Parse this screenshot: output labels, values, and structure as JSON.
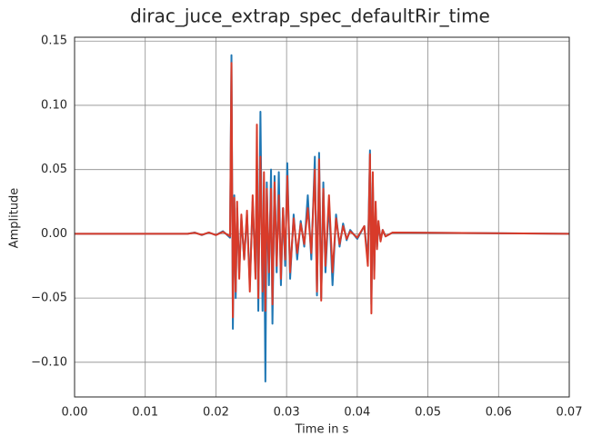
{
  "chart_data": {
    "type": "line",
    "title": "dirac_juce_extrap_spec_defaultRir_time",
    "xlabel": "Time in s",
    "ylabel": "Amplitude",
    "x": [
      0,
      0.016,
      0.017,
      0.018,
      0.019,
      0.02,
      0.021,
      0.022,
      0.0222,
      0.0224,
      0.0226,
      0.0228,
      0.023,
      0.0233,
      0.0236,
      0.024,
      0.0244,
      0.0248,
      0.0252,
      0.0256,
      0.0258,
      0.026,
      0.0263,
      0.0266,
      0.0268,
      0.027,
      0.0272,
      0.0275,
      0.0278,
      0.028,
      0.0283,
      0.0286,
      0.0289,
      0.0292,
      0.0295,
      0.0298,
      0.0301,
      0.0305,
      0.031,
      0.0315,
      0.032,
      0.0325,
      0.033,
      0.0335,
      0.034,
      0.0343,
      0.0346,
      0.0349,
      0.0352,
      0.0355,
      0.036,
      0.0365,
      0.037,
      0.0375,
      0.038,
      0.0385,
      0.039,
      0.04,
      0.041,
      0.0415,
      0.0418,
      0.042,
      0.0422,
      0.0424,
      0.0426,
      0.0428,
      0.043,
      0.0433,
      0.0436,
      0.044,
      0.045,
      0.07
    ],
    "series": [
      {
        "color": "#1f77b4",
        "values": [
          0,
          0,
          0.001,
          -0.001,
          0.001,
          -0.001,
          0.002,
          -0.003,
          0.139,
          -0.074,
          0.03,
          -0.05,
          0.02,
          -0.03,
          0.012,
          -0.02,
          0.015,
          -0.04,
          0.025,
          -0.03,
          0.055,
          -0.06,
          0.095,
          -0.06,
          0.03,
          -0.115,
          0.04,
          -0.04,
          0.05,
          -0.07,
          0.045,
          -0.03,
          0.048,
          -0.04,
          0.02,
          -0.025,
          0.055,
          -0.035,
          0.015,
          -0.02,
          0.01,
          -0.01,
          0.03,
          -0.02,
          0.06,
          -0.048,
          0.063,
          -0.05,
          0.04,
          -0.03,
          0.025,
          -0.04,
          0.015,
          -0.01,
          0.008,
          -0.005,
          0.003,
          -0.004,
          0.006,
          -0.02,
          0.065,
          -0.055,
          0.04,
          -0.03,
          0.02,
          -0.01,
          0.008,
          -0.005,
          0.003,
          -0.002,
          0.001,
          0
        ]
      },
      {
        "color": "#d83b2a",
        "values": [
          0,
          0,
          0.0008,
          -0.0008,
          0.001,
          -0.001,
          0.0015,
          -0.002,
          0.133,
          -0.065,
          0.028,
          -0.045,
          0.025,
          -0.035,
          0.015,
          -0.02,
          0.018,
          -0.045,
          0.03,
          -0.035,
          0.085,
          -0.05,
          0.06,
          -0.045,
          0.048,
          -0.06,
          0.035,
          -0.03,
          0.035,
          -0.055,
          0.04,
          -0.025,
          0.03,
          -0.035,
          0.02,
          -0.02,
          0.045,
          -0.03,
          0.012,
          -0.015,
          0.008,
          -0.008,
          0.02,
          -0.015,
          0.05,
          -0.045,
          0.058,
          -0.052,
          0.035,
          -0.025,
          0.03,
          -0.03,
          0.012,
          -0.008,
          0.006,
          -0.004,
          0.002,
          -0.003,
          0.006,
          -0.025,
          0.062,
          -0.062,
          0.048,
          -0.035,
          0.025,
          -0.012,
          0.01,
          -0.006,
          0.003,
          -0.002,
          0.001,
          0
        ]
      }
    ],
    "xlim": [
      0,
      0.07
    ],
    "xticks": [
      {
        "value": 0,
        "label": "0.00"
      },
      0.01,
      0.02,
      0.03,
      0.04,
      0.05,
      0.06,
      0.07
    ],
    "ylim": [
      -0.127,
      0.153
    ],
    "yticks": [
      {
        "value": -0.1,
        "label": "−0.10"
      },
      {
        "value": -0.05,
        "label": "−0.05"
      },
      {
        "value": 0,
        "label": "0.00"
      },
      0.05,
      {
        "value": 0.1,
        "label": "0.10"
      },
      0.15
    ],
    "grid": true
  }
}
